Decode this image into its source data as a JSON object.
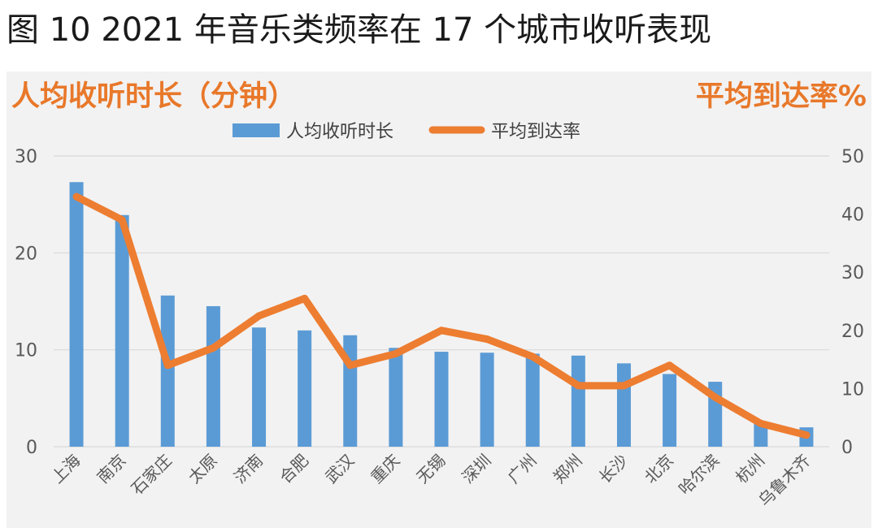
{
  "title": "图 10 2021 年音乐类频率在 17 个城市收听表现",
  "chart_data": {
    "type": "bar",
    "categories": [
      "上海",
      "南京",
      "石家庄",
      "太原",
      "济南",
      "合肥",
      "武汉",
      "重庆",
      "无锡",
      "深圳",
      "广州",
      "郑州",
      "长沙",
      "北京",
      "哈尔滨",
      "杭州",
      "乌鲁木齐"
    ],
    "series": [
      {
        "name": "人均收听时长",
        "type": "bar",
        "axis": "left",
        "color": "#5b9bd5",
        "values": [
          27.3,
          23.9,
          15.6,
          14.5,
          12.3,
          12.0,
          11.5,
          10.2,
          9.8,
          9.7,
          9.6,
          9.4,
          8.6,
          7.5,
          6.7,
          2.5,
          2.0
        ]
      },
      {
        "name": "平均到达率",
        "type": "line",
        "axis": "right",
        "color": "#ed7d31",
        "values": [
          43.0,
          39.0,
          14.0,
          17.0,
          22.5,
          25.5,
          14.0,
          16.0,
          20.0,
          18.5,
          15.5,
          10.5,
          10.5,
          14.0,
          8.5,
          4.0,
          2.0
        ]
      }
    ],
    "y_left": {
      "label": "人均收听时长（分钟）",
      "ticks": [
        0,
        10,
        20,
        30
      ],
      "range": [
        0,
        30
      ]
    },
    "y_right": {
      "label": "平均到达率%",
      "ticks": [
        0,
        10,
        20,
        30,
        40,
        50
      ],
      "range": [
        0,
        50
      ]
    },
    "grid": true,
    "legend": "top-center"
  }
}
